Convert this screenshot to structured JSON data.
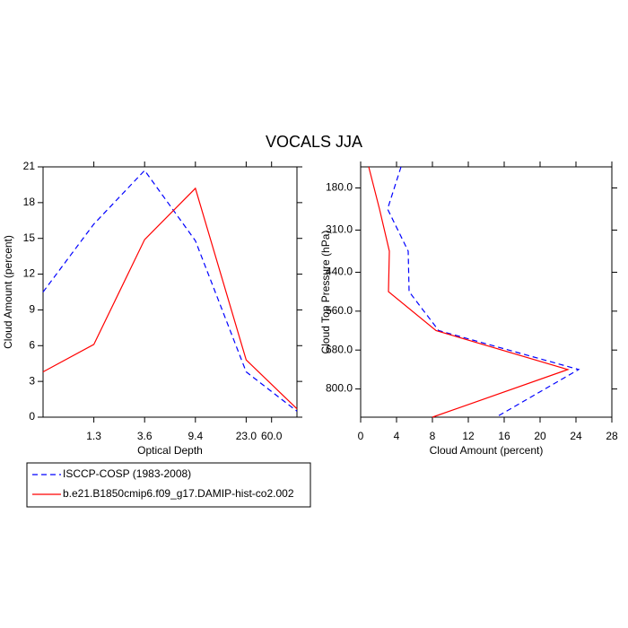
{
  "title": "VOCALS JJA",
  "chart_data": [
    {
      "type": "line",
      "xlabel": "Optical Depth",
      "ylabel": "Cloud Amount (percent)",
      "x": [
        0,
        1,
        2,
        3,
        4,
        5
      ],
      "xlim": [
        0,
        5
      ],
      "xticks": [
        {
          "value": 1,
          "label": "1.3"
        },
        {
          "value": 2,
          "label": "3.6"
        },
        {
          "value": 3,
          "label": "9.4"
        },
        {
          "value": 4,
          "label": "23.0"
        },
        {
          "value": 4.5,
          "label": "60.0"
        }
      ],
      "ylim": [
        0,
        21
      ],
      "yticks": [
        0,
        3,
        6,
        9,
        12,
        15,
        18,
        21
      ],
      "series": [
        {
          "name": "ISCCP-COSP (1983-2008)",
          "color": "#0000ff",
          "dash": true,
          "values": [
            10.5,
            16.2,
            20.7,
            14.8,
            3.8,
            0.5
          ]
        },
        {
          "name": "b.e21.B1850cmip6.f09_g17.DAMIP-hist-co2.002",
          "color": "#ff0000",
          "dash": false,
          "values": [
            3.8,
            6.1,
            14.9,
            19.2,
            4.8,
            0.7
          ]
        }
      ]
    },
    {
      "type": "profile",
      "xlabel": "Cloud Amount (percent)",
      "ylabel": "Cloud Top Pressure (hPa)",
      "y": [
        115,
        245,
        375,
        500,
        620,
        740,
        887
      ],
      "xlim": [
        0,
        28
      ],
      "xticks": [
        0,
        4,
        8,
        12,
        16,
        20,
        24,
        28
      ],
      "ylim": [
        887,
        115
      ],
      "yticks": [
        {
          "value": 180,
          "label": "180.0"
        },
        {
          "value": 310,
          "label": "310.0"
        },
        {
          "value": 440,
          "label": "440.0"
        },
        {
          "value": 560,
          "label": "560.0"
        },
        {
          "value": 680,
          "label": "680.0"
        },
        {
          "value": 800,
          "label": "800.0"
        }
      ],
      "series": [
        {
          "color": "#0000ff",
          "dash": true,
          "values": [
            4.5,
            3.0,
            5.3,
            5.4,
            8.7,
            24.3,
            15.1
          ]
        },
        {
          "color": "#ff0000",
          "dash": false,
          "values": [
            0.9,
            2.1,
            3.2,
            3.1,
            8.4,
            23.1,
            8.0
          ]
        }
      ]
    }
  ]
}
